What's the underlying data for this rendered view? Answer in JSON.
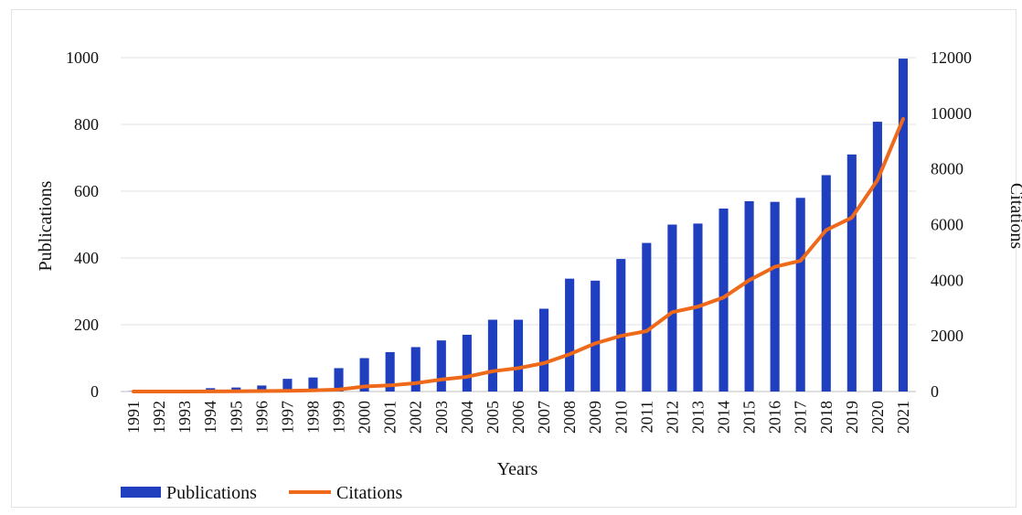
{
  "chart_data": {
    "type": "bar",
    "title": "",
    "xlabel": "Years",
    "ylabel": "Publications",
    "y2label": "Citations",
    "ylim": [
      0,
      1000
    ],
    "y2lim": [
      0,
      12000
    ],
    "yticks": [
      "0",
      "200",
      "400",
      "600",
      "800",
      "1000"
    ],
    "y2ticks": [
      "0",
      "2000",
      "4000",
      "6000",
      "8000",
      "10000",
      "12000"
    ],
    "grid": true,
    "legend_position": "bottom-left",
    "categories": [
      "1991",
      "1992",
      "1993",
      "1994",
      "1995",
      "1996",
      "1997",
      "1998",
      "1999",
      "2000",
      "2001",
      "2002",
      "2003",
      "2004",
      "2005",
      "2006",
      "2007",
      "2008",
      "2009",
      "2010",
      "2011",
      "2012",
      "2013",
      "2014",
      "2015",
      "2016",
      "2017",
      "2018",
      "2019",
      "2020",
      "2021"
    ],
    "series": [
      {
        "name": "Publications",
        "type": "bar",
        "axis": "left",
        "color": "#1f3fbf",
        "values": [
          1,
          2,
          3,
          10,
          12,
          18,
          38,
          42,
          70,
          100,
          118,
          133,
          153,
          170,
          215,
          215,
          248,
          338,
          332,
          397,
          445,
          500,
          503,
          548,
          570,
          568,
          580,
          648,
          710,
          808,
          997
        ]
      },
      {
        "name": "Citations",
        "type": "line",
        "axis": "right",
        "color": "#ee6a1a",
        "values": [
          0,
          0,
          0,
          5,
          10,
          15,
          25,
          40,
          70,
          180,
          220,
          300,
          430,
          530,
          730,
          840,
          1020,
          1340,
          1730,
          2000,
          2170,
          2850,
          3050,
          3380,
          4000,
          4480,
          4700,
          5800,
          6250,
          7600,
          9800
        ]
      }
    ]
  }
}
